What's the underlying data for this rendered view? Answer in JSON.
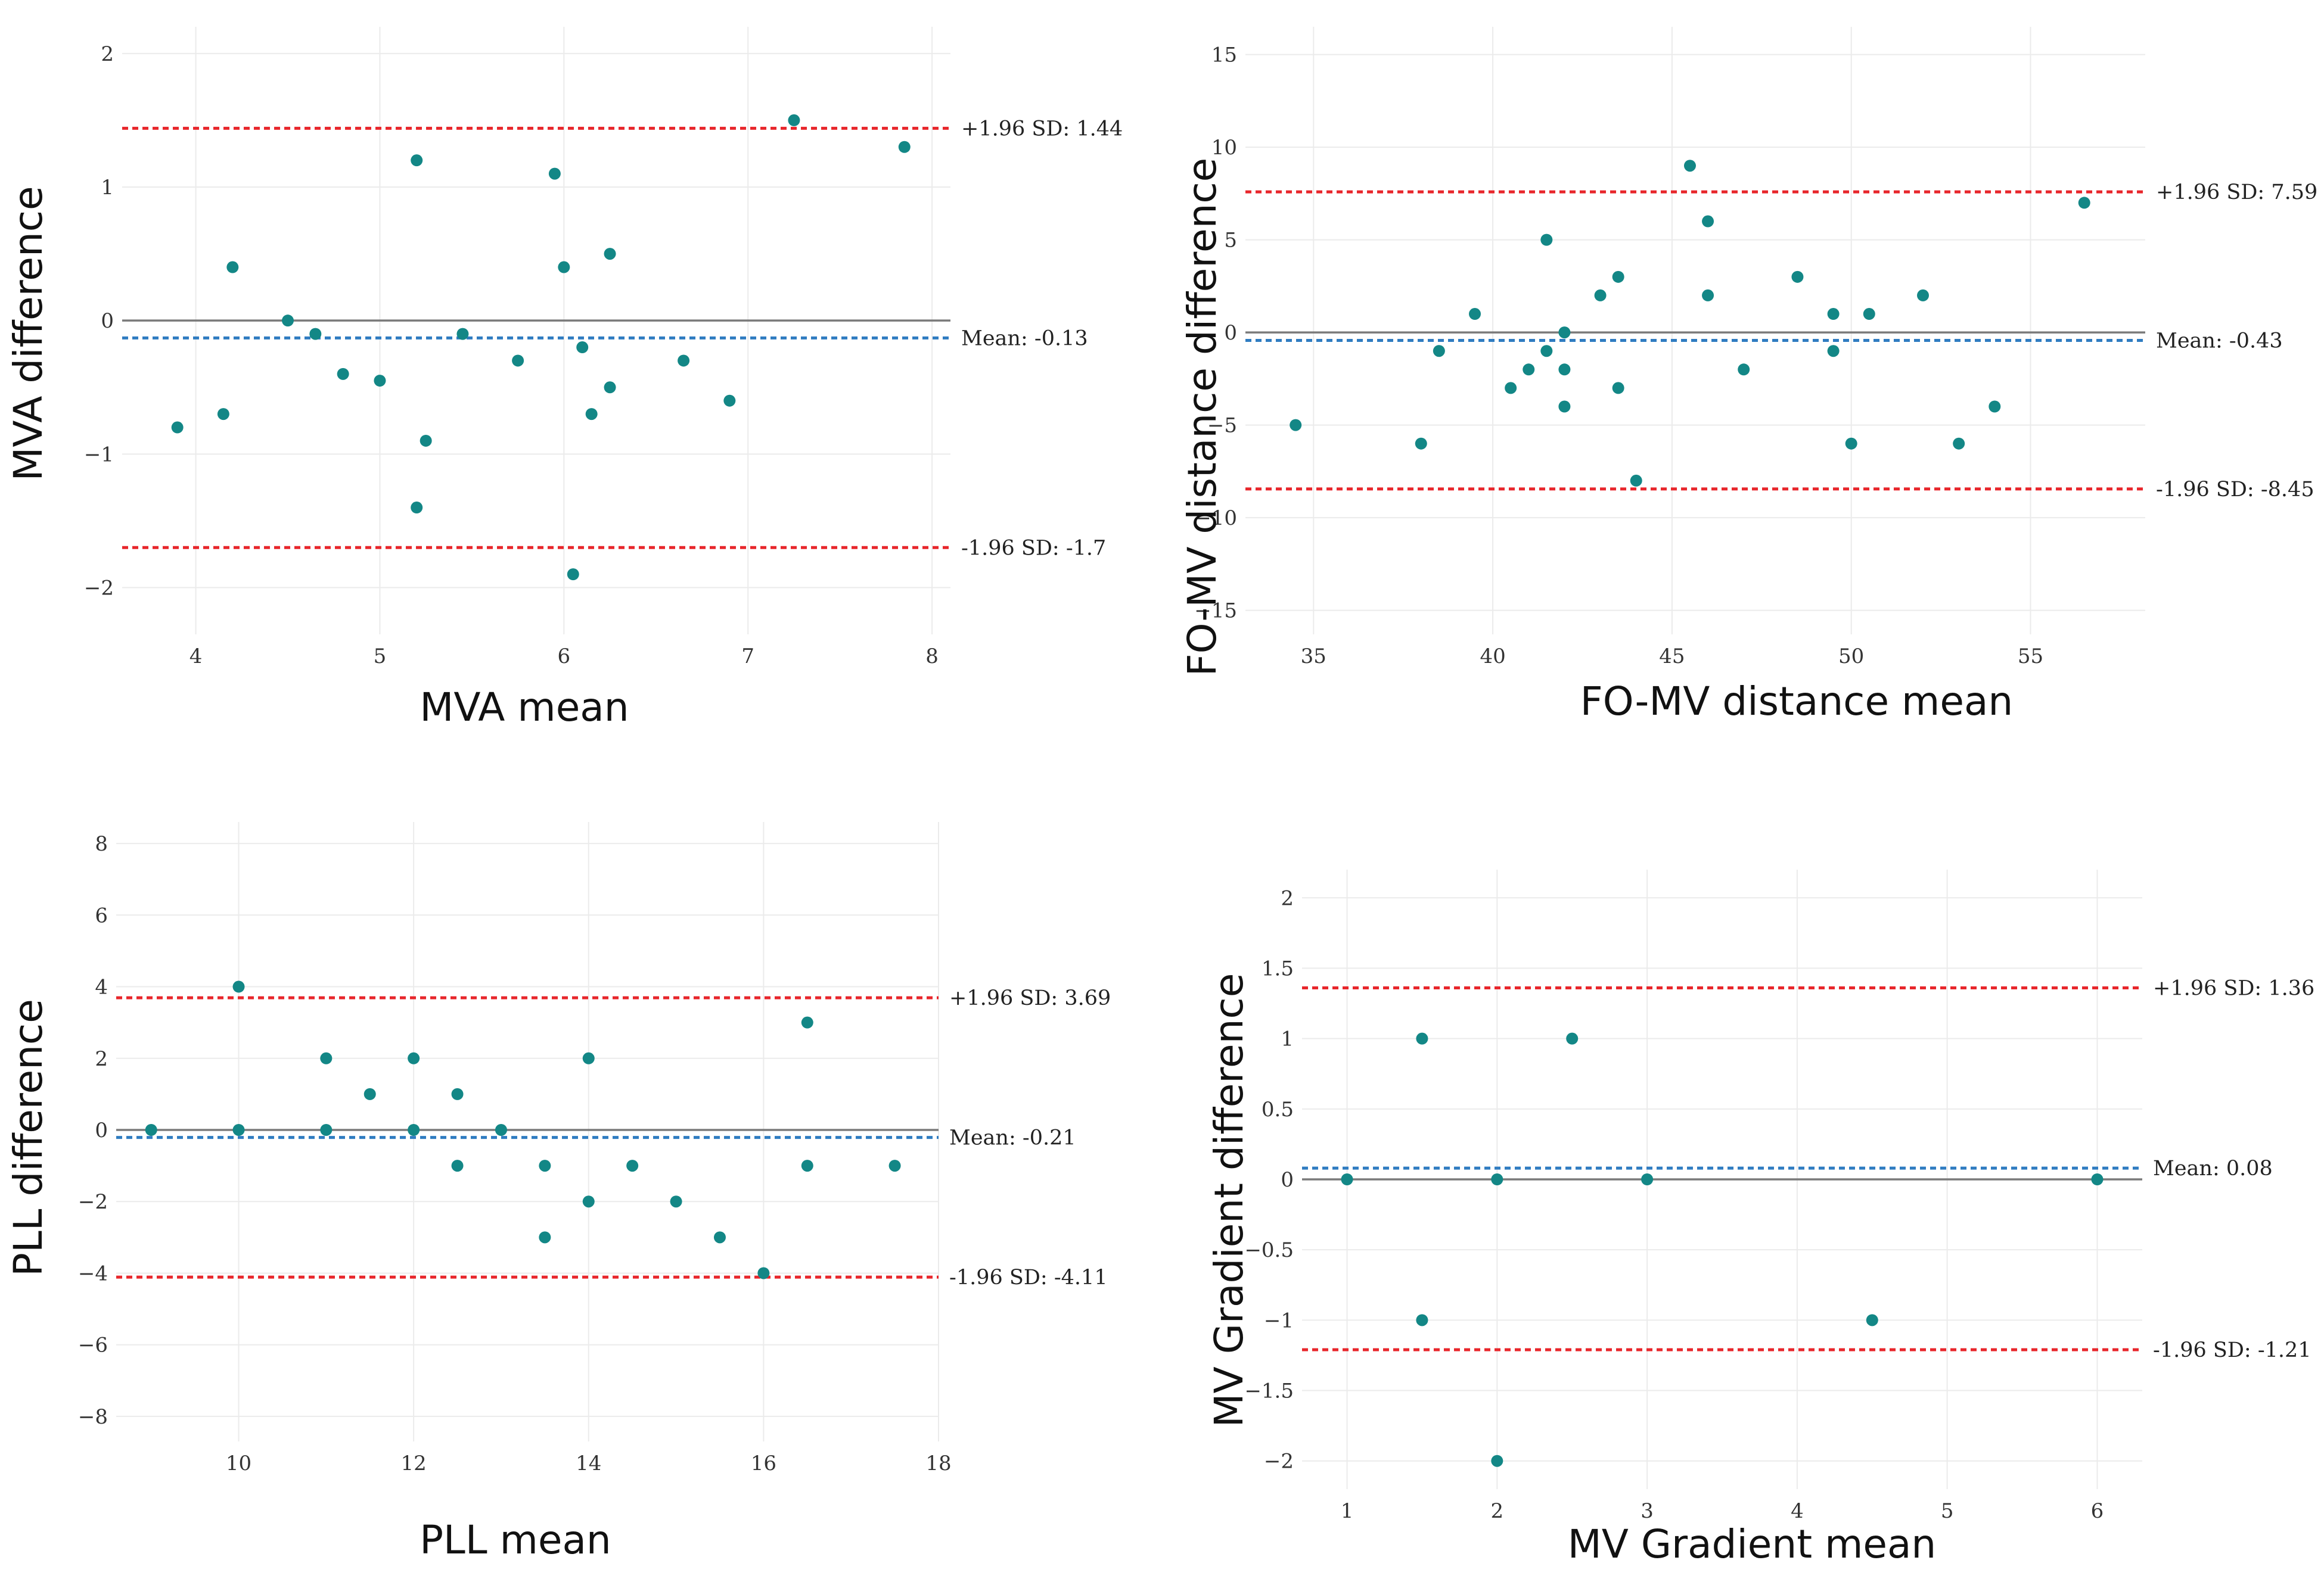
{
  "colors": {
    "point": "#138786",
    "limit": "#e8262b",
    "mean": "#2f7cc1"
  },
  "chart_data": [
    {
      "type": "scatter",
      "title": "",
      "xlabel": "MVA mean",
      "ylabel": "MVA difference",
      "xlim": [
        3.6,
        8.1
      ],
      "ylim": [
        -2.35,
        2.2
      ],
      "xticks": [
        4,
        5,
        6,
        7,
        8
      ],
      "xtick_labels": [
        "4",
        "5",
        "6",
        "7",
        "8"
      ],
      "yticks": [
        -2,
        -1,
        0,
        1,
        2
      ],
      "ytick_labels": [
        "−2",
        "−1",
        "0",
        "1",
        "2"
      ],
      "mean": -0.13,
      "upper_limit": 1.44,
      "lower_limit": -1.7,
      "mean_label": "Mean: -0.13",
      "upper_label": "+1.96 SD: 1.44",
      "lower_label": "-1.96 SD: -1.7",
      "points": [
        [
          3.9,
          -0.8
        ],
        [
          4.15,
          -0.7
        ],
        [
          4.2,
          0.4
        ],
        [
          4.5,
          0.0
        ],
        [
          4.65,
          -0.1
        ],
        [
          4.8,
          -0.4
        ],
        [
          5.0,
          -0.45
        ],
        [
          5.2,
          1.2
        ],
        [
          5.2,
          -1.4
        ],
        [
          5.25,
          -0.9
        ],
        [
          5.45,
          -0.1
        ],
        [
          5.75,
          -0.3
        ],
        [
          5.95,
          1.1
        ],
        [
          6.0,
          0.4
        ],
        [
          6.05,
          -1.9
        ],
        [
          6.1,
          -0.2
        ],
        [
          6.15,
          -0.7
        ],
        [
          6.25,
          0.5
        ],
        [
          6.25,
          -0.5
        ],
        [
          6.65,
          -0.3
        ],
        [
          6.9,
          -0.6
        ],
        [
          7.25,
          1.5
        ],
        [
          7.85,
          1.3
        ]
      ]
    },
    {
      "type": "scatter",
      "title": "",
      "xlabel": "FO-MV distance mean",
      "ylabel": "FO-MV distance difference",
      "xlim": [
        33.1,
        58.2
      ],
      "ylim": [
        -16.3,
        16.5
      ],
      "xticks": [
        35,
        40,
        45,
        50,
        55
      ],
      "xtick_labels": [
        "35",
        "40",
        "45",
        "50",
        "55"
      ],
      "yticks": [
        -15,
        -10,
        -5,
        0,
        5,
        10,
        15
      ],
      "ytick_labels": [
        "−15",
        "−10",
        "−5",
        "0",
        "5",
        "10",
        "15"
      ],
      "mean": -0.43,
      "upper_limit": 7.59,
      "lower_limit": -8.45,
      "mean_label": "Mean: -0.43",
      "upper_label": "+1.96 SD: 7.59",
      "lower_label": "-1.96 SD: -8.45",
      "points": [
        [
          34.5,
          -5
        ],
        [
          38,
          -6
        ],
        [
          38.5,
          -1
        ],
        [
          39.5,
          1
        ],
        [
          40.5,
          -3
        ],
        [
          41,
          -2
        ],
        [
          41.5,
          -1
        ],
        [
          41.5,
          5
        ],
        [
          42,
          0
        ],
        [
          42,
          -2
        ],
        [
          42,
          -4
        ],
        [
          43,
          2
        ],
        [
          43.5,
          3
        ],
        [
          43.5,
          -3
        ],
        [
          44,
          -8
        ],
        [
          45.5,
          9
        ],
        [
          46,
          6
        ],
        [
          46,
          2
        ],
        [
          47,
          -2
        ],
        [
          48.5,
          3
        ],
        [
          49.5,
          1
        ],
        [
          49.5,
          -1
        ],
        [
          50,
          -6
        ],
        [
          50.5,
          1
        ],
        [
          52,
          2
        ],
        [
          53,
          -6
        ],
        [
          54,
          -4
        ],
        [
          56.5,
          7
        ]
      ]
    },
    {
      "type": "scatter",
      "title": "",
      "xlabel": "PLL mean",
      "ylabel": "PLL difference",
      "xlim": [
        8.6,
        18.0
      ],
      "ylim": [
        -8.7,
        8.6
      ],
      "xticks": [
        10,
        12,
        14,
        16,
        18
      ],
      "xtick_labels": [
        "10",
        "12",
        "14",
        "16",
        "18"
      ],
      "yticks": [
        -8,
        -6,
        -4,
        -2,
        0,
        2,
        4,
        6,
        8
      ],
      "ytick_labels": [
        "−8",
        "−6",
        "−4",
        "−2",
        "0",
        "2",
        "4",
        "6",
        "8"
      ],
      "mean": -0.21,
      "upper_limit": 3.69,
      "lower_limit": -4.11,
      "mean_label": "Mean: -0.21",
      "upper_label": "+1.96 SD: 3.69",
      "lower_label": "-1.96 SD: -4.11",
      "points": [
        [
          9,
          0
        ],
        [
          10,
          4
        ],
        [
          10,
          0
        ],
        [
          11,
          2
        ],
        [
          11,
          0
        ],
        [
          11.5,
          1
        ],
        [
          12,
          2
        ],
        [
          12,
          0
        ],
        [
          12.5,
          1
        ],
        [
          12.5,
          -1
        ],
        [
          13,
          0
        ],
        [
          13.5,
          -1
        ],
        [
          13.5,
          -3
        ],
        [
          14,
          2
        ],
        [
          14,
          -2
        ],
        [
          14.5,
          -1
        ],
        [
          15,
          -2
        ],
        [
          15.5,
          -3
        ],
        [
          16,
          -4
        ],
        [
          16.5,
          3
        ],
        [
          16.5,
          -1
        ],
        [
          17.5,
          -1
        ]
      ]
    },
    {
      "type": "scatter",
      "title": "",
      "xlabel": "MV  Gradient mean",
      "ylabel": "MV  Gradient difference",
      "xlim": [
        0.7,
        6.3
      ],
      "ylim": [
        -2.2,
        2.2
      ],
      "xticks": [
        1,
        2,
        3,
        4,
        5,
        6
      ],
      "xtick_labels": [
        "1",
        "2",
        "3",
        "4",
        "5",
        "6"
      ],
      "yticks": [
        -2,
        -1.5,
        -1,
        -0.5,
        0,
        0.5,
        1,
        1.5,
        2
      ],
      "ytick_labels": [
        "−2",
        "−1.5",
        "−1",
        "−0.5",
        "0",
        "0.5",
        "1",
        "1.5",
        "2"
      ],
      "mean": 0.08,
      "upper_limit": 1.36,
      "lower_limit": -1.21,
      "mean_label": "Mean: 0.08",
      "upper_label": "+1.96 SD: 1.36",
      "lower_label": "-1.96 SD: -1.21",
      "points": [
        [
          1,
          0
        ],
        [
          1.5,
          1
        ],
        [
          1.5,
          -1
        ],
        [
          2,
          0
        ],
        [
          2,
          -2
        ],
        [
          2.5,
          1
        ],
        [
          3,
          0
        ],
        [
          4.5,
          -1
        ],
        [
          6,
          0
        ]
      ]
    }
  ]
}
